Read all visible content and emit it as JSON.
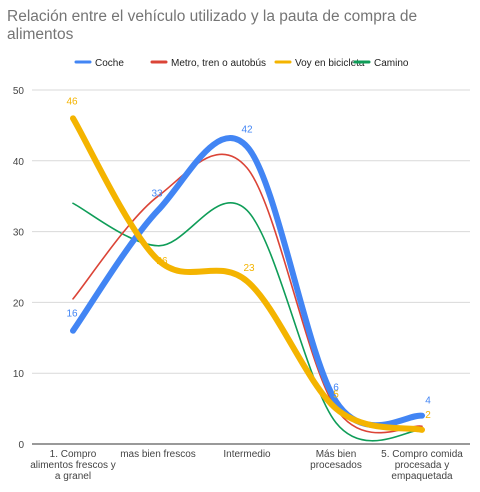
{
  "chart_data": {
    "type": "line",
    "title": "Relación entre el vehículo utilizado y la pauta de compra de alimentos",
    "categories": [
      "1. Compro alimentos frescos y a granel",
      "mas bien frescos",
      "Intermedio",
      "Más bien procesados",
      "5. Compro comida procesada y empaquetada"
    ],
    "category_lines": [
      [
        "1. Compro",
        "alimentos frescos y",
        "a granel"
      ],
      [
        "mas bien frescos"
      ],
      [
        "Intermedio"
      ],
      [
        "Más bien",
        "procesados"
      ],
      [
        "5. Compro comida",
        "procesada y",
        "empaquetada"
      ]
    ],
    "ylim": [
      0,
      50
    ],
    "yticks": [
      0,
      10,
      20,
      30,
      40,
      50
    ],
    "grid": true,
    "smooth": true,
    "legend_position": "top",
    "series": [
      {
        "name": "Coche",
        "color": "#4285f4",
        "values": [
          16,
          33,
          42,
          6,
          4
        ],
        "labels": [
          "16",
          "33",
          "42",
          "6",
          "4"
        ],
        "thick": true
      },
      {
        "name": "Metro, tren o autobús",
        "color": "#db4437",
        "values": [
          20.5,
          35,
          39,
          5,
          2.5
        ],
        "labels": [],
        "thick": false
      },
      {
        "name": "Voy en bicicleta",
        "color": "#f4b400",
        "values": [
          46,
          26,
          23,
          5,
          2
        ],
        "labels": [
          "46",
          "26",
          "23",
          "5",
          "2"
        ],
        "thick": true
      },
      {
        "name": "Camino",
        "color": "#0f9d58",
        "values": [
          34,
          28,
          33,
          3,
          2
        ],
        "labels": [],
        "thick": false
      }
    ]
  }
}
